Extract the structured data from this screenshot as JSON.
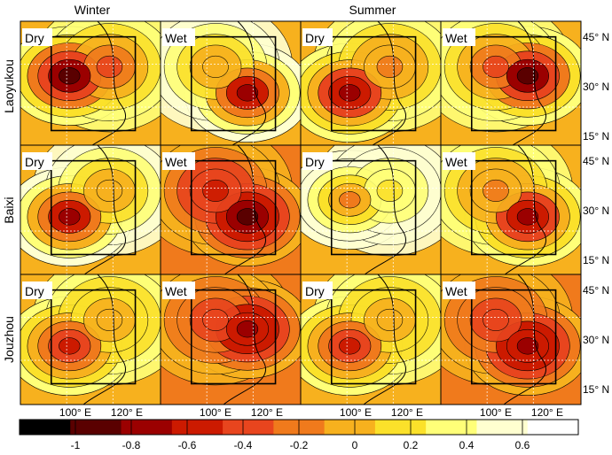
{
  "chart_data": {
    "type": "heatmap",
    "columns": [
      "Winter",
      "Summer"
    ],
    "rows": [
      "Laoyukou",
      "Baixi",
      "Jouzhou"
    ],
    "panel_tags": [
      "Dry",
      "Wet",
      "Dry",
      "Wet"
    ],
    "lat_ticks": [
      "45° N",
      "30° N",
      "15° N"
    ],
    "lon_ticks": [
      "100° E",
      "120° E"
    ],
    "colorbar": {
      "range": [
        -1.2,
        0.8
      ],
      "ticks": [
        -1,
        -0.8,
        -0.6,
        -0.4,
        -0.2,
        0,
        0.2,
        0.4,
        0.6
      ],
      "tick_labels": [
        "-1",
        "-0.8",
        "-0.6",
        "-0.4",
        "-0.2",
        "0",
        "0.2",
        "0.4",
        "0.6"
      ],
      "colors": [
        "#000000",
        "#5a0000",
        "#9b0000",
        "#cc1a00",
        "#e8451e",
        "#f07a1c",
        "#f7b11e",
        "#fbe12a",
        "#ffff78",
        "#ffffd0",
        "#ffffff"
      ]
    },
    "panels": [
      {
        "row": "Laoyukou",
        "season": "Winter",
        "tag": "Dry",
        "min": -1.0,
        "max": 0.4
      },
      {
        "row": "Laoyukou",
        "season": "Winter",
        "tag": "Wet",
        "min": -0.8,
        "max": 0.6
      },
      {
        "row": "Laoyukou",
        "season": "Summer",
        "tag": "Dry",
        "min": -0.8,
        "max": 0.4
      },
      {
        "row": "Laoyukou",
        "season": "Summer",
        "tag": "Wet",
        "min": -1.0,
        "max": 0.4
      },
      {
        "row": "Baixi",
        "season": "Winter",
        "tag": "Dry",
        "min": -0.8,
        "max": 0.6
      },
      {
        "row": "Baixi",
        "season": "Winter",
        "tag": "Wet",
        "min": -1.0,
        "max": 0.0
      },
      {
        "row": "Baixi",
        "season": "Summer",
        "tag": "Dry",
        "min": -0.2,
        "max": 0.6
      },
      {
        "row": "Baixi",
        "season": "Summer",
        "tag": "Wet",
        "min": -0.8,
        "max": 0.4
      },
      {
        "row": "Jouzhou",
        "season": "Winter",
        "tag": "Dry",
        "min": -0.6,
        "max": 0.4
      },
      {
        "row": "Jouzhou",
        "season": "Winter",
        "tag": "Wet",
        "min": -0.8,
        "max": 0.0
      },
      {
        "row": "Jouzhou",
        "season": "Summer",
        "tag": "Dry",
        "min": -0.6,
        "max": 0.4
      },
      {
        "row": "Jouzhou",
        "season": "Summer",
        "tag": "Wet",
        "min": -0.8,
        "max": 0.0
      }
    ]
  }
}
